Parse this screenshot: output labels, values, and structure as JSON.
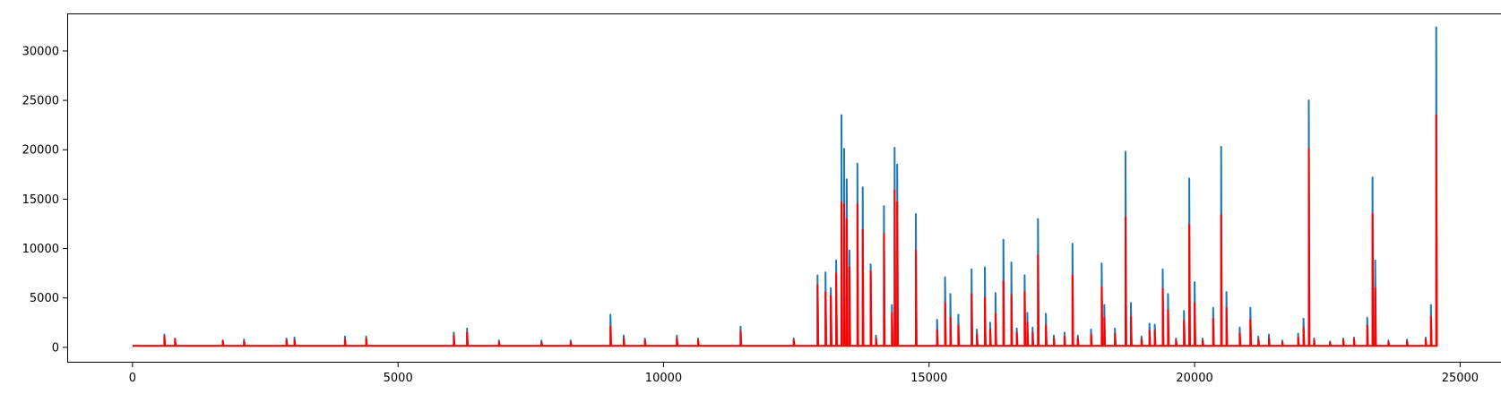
{
  "chart_data": {
    "type": "line",
    "title": "",
    "xlabel": "",
    "ylabel": "",
    "xlim": [
      -1230,
      25770
    ],
    "ylim": [
      -1550,
      33800
    ],
    "grid": false,
    "legend": "none",
    "x_ticks": [
      0,
      5000,
      10000,
      15000,
      20000,
      25000
    ],
    "x_tick_labels": [
      "0",
      "5000",
      "10000",
      "15000",
      "20000",
      "25000"
    ],
    "y_ticks": [
      0,
      5000,
      10000,
      15000,
      20000,
      25000,
      30000
    ],
    "y_tick_labels": [
      "0",
      "5000",
      "10000",
      "15000",
      "20000",
      "25000",
      "30000"
    ],
    "baseline": 150,
    "series": [
      {
        "color": "#1f77b4",
        "spikes": [
          [
            600,
            1300
          ],
          [
            800,
            900
          ],
          [
            1700,
            700
          ],
          [
            2100,
            800
          ],
          [
            2900,
            900
          ],
          [
            3050,
            1000
          ],
          [
            4000,
            1100
          ],
          [
            4400,
            1100
          ],
          [
            6050,
            1500
          ],
          [
            6300,
            1900
          ],
          [
            6900,
            700
          ],
          [
            7700,
            700
          ],
          [
            8250,
            700
          ],
          [
            9000,
            3300
          ],
          [
            9250,
            1200
          ],
          [
            9650,
            900
          ],
          [
            10250,
            1200
          ],
          [
            10650,
            900
          ],
          [
            11450,
            2100
          ],
          [
            12450,
            900
          ],
          [
            12900,
            7300
          ],
          [
            13050,
            7600
          ],
          [
            13150,
            6000
          ],
          [
            13250,
            8800
          ],
          [
            13350,
            23500
          ],
          [
            13400,
            20100
          ],
          [
            13450,
            17000
          ],
          [
            13500,
            9800
          ],
          [
            13650,
            18600
          ],
          [
            13750,
            16200
          ],
          [
            13900,
            8400
          ],
          [
            14000,
            1200
          ],
          [
            14150,
            14300
          ],
          [
            14300,
            4300
          ],
          [
            14350,
            20200
          ],
          [
            14400,
            18500
          ],
          [
            14750,
            13500
          ],
          [
            15150,
            2800
          ],
          [
            15300,
            7100
          ],
          [
            15400,
            5400
          ],
          [
            15550,
            3300
          ],
          [
            15800,
            7900
          ],
          [
            15900,
            1800
          ],
          [
            16050,
            8100
          ],
          [
            16150,
            2500
          ],
          [
            16250,
            5500
          ],
          [
            16400,
            10900
          ],
          [
            16550,
            8600
          ],
          [
            16650,
            1900
          ],
          [
            16800,
            7300
          ],
          [
            16850,
            3500
          ],
          [
            16950,
            2000
          ],
          [
            17050,
            13000
          ],
          [
            17200,
            3400
          ],
          [
            17350,
            1200
          ],
          [
            17550,
            1500
          ],
          [
            17700,
            10500
          ],
          [
            17800,
            1200
          ],
          [
            18050,
            1800
          ],
          [
            18250,
            8500
          ],
          [
            18300,
            4300
          ],
          [
            18500,
            1900
          ],
          [
            18700,
            19800
          ],
          [
            18800,
            4500
          ],
          [
            19000,
            1100
          ],
          [
            19150,
            2400
          ],
          [
            19250,
            2300
          ],
          [
            19400,
            7900
          ],
          [
            19500,
            5400
          ],
          [
            19650,
            900
          ],
          [
            19800,
            3700
          ],
          [
            19900,
            17100
          ],
          [
            20000,
            6600
          ],
          [
            20150,
            900
          ],
          [
            20350,
            4000
          ],
          [
            20500,
            20300
          ],
          [
            20600,
            5600
          ],
          [
            20850,
            2000
          ],
          [
            21050,
            4000
          ],
          [
            21200,
            1100
          ],
          [
            21400,
            1300
          ],
          [
            21650,
            700
          ],
          [
            21950,
            1400
          ],
          [
            22050,
            2900
          ],
          [
            22150,
            25000
          ],
          [
            22250,
            900
          ],
          [
            22550,
            600
          ],
          [
            22800,
            900
          ],
          [
            23000,
            1000
          ],
          [
            23250,
            3000
          ],
          [
            23350,
            17200
          ],
          [
            23400,
            8800
          ],
          [
            23650,
            700
          ],
          [
            24000,
            800
          ],
          [
            24350,
            1000
          ],
          [
            24450,
            4300
          ],
          [
            24550,
            32400
          ]
        ]
      },
      {
        "color": "#ff0000",
        "spikes": [
          [
            600,
            1100
          ],
          [
            800,
            800
          ],
          [
            1700,
            700
          ],
          [
            2100,
            600
          ],
          [
            2900,
            700
          ],
          [
            3050,
            700
          ],
          [
            4000,
            800
          ],
          [
            4400,
            900
          ],
          [
            6050,
            1200
          ],
          [
            6300,
            1500
          ],
          [
            6900,
            500
          ],
          [
            7700,
            500
          ],
          [
            8250,
            500
          ],
          [
            9000,
            2100
          ],
          [
            9250,
            900
          ],
          [
            9650,
            700
          ],
          [
            10250,
            900
          ],
          [
            10650,
            700
          ],
          [
            11450,
            1600
          ],
          [
            12450,
            700
          ],
          [
            12900,
            6300
          ],
          [
            13050,
            5600
          ],
          [
            13150,
            5200
          ],
          [
            13250,
            7500
          ],
          [
            13350,
            14700
          ],
          [
            13400,
            14500
          ],
          [
            13450,
            13000
          ],
          [
            13500,
            8100
          ],
          [
            13650,
            14500
          ],
          [
            13750,
            11900
          ],
          [
            13900,
            7700
          ],
          [
            14000,
            900
          ],
          [
            14150,
            11500
          ],
          [
            14300,
            3500
          ],
          [
            14350,
            15900
          ],
          [
            14400,
            14700
          ],
          [
            14750,
            9800
          ],
          [
            15150,
            1700
          ],
          [
            15300,
            4500
          ],
          [
            15400,
            3000
          ],
          [
            15550,
            2200
          ],
          [
            15800,
            5400
          ],
          [
            15900,
            1300
          ],
          [
            16050,
            5000
          ],
          [
            16150,
            1800
          ],
          [
            16250,
            3400
          ],
          [
            16400,
            6700
          ],
          [
            16550,
            5300
          ],
          [
            16650,
            1500
          ],
          [
            16800,
            5600
          ],
          [
            16850,
            2500
          ],
          [
            16950,
            1500
          ],
          [
            17050,
            9300
          ],
          [
            17200,
            2200
          ],
          [
            17350,
            900
          ],
          [
            17550,
            1100
          ],
          [
            17700,
            7300
          ],
          [
            17800,
            900
          ],
          [
            18050,
            1300
          ],
          [
            18250,
            6100
          ],
          [
            18300,
            3000
          ],
          [
            18500,
            1400
          ],
          [
            18700,
            13200
          ],
          [
            18800,
            3100
          ],
          [
            19000,
            800
          ],
          [
            19150,
            1700
          ],
          [
            19250,
            1700
          ],
          [
            19400,
            5900
          ],
          [
            19500,
            3800
          ],
          [
            19650,
            700
          ],
          [
            19800,
            2700
          ],
          [
            19900,
            12400
          ],
          [
            20000,
            4500
          ],
          [
            20150,
            700
          ],
          [
            20350,
            2900
          ],
          [
            20500,
            13400
          ],
          [
            20600,
            4000
          ],
          [
            20850,
            1400
          ],
          [
            21050,
            2800
          ],
          [
            21200,
            800
          ],
          [
            21400,
            900
          ],
          [
            21650,
            500
          ],
          [
            21950,
            1000
          ],
          [
            22050,
            2000
          ],
          [
            22150,
            20100
          ],
          [
            22250,
            700
          ],
          [
            22550,
            500
          ],
          [
            22800,
            700
          ],
          [
            23000,
            800
          ],
          [
            23250,
            2200
          ],
          [
            23350,
            13500
          ],
          [
            23400,
            6000
          ],
          [
            23650,
            500
          ],
          [
            24000,
            600
          ],
          [
            24350,
            800
          ],
          [
            24450,
            3100
          ],
          [
            24550,
            23500
          ]
        ]
      }
    ]
  }
}
